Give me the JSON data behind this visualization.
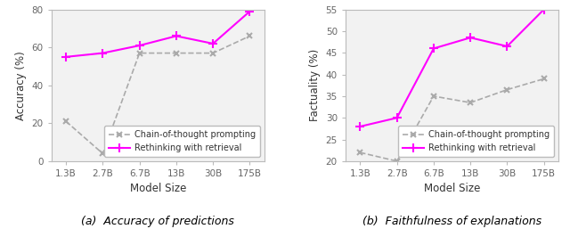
{
  "x_labels": [
    "1.3B",
    "2.7B",
    "6.7B",
    "13B",
    "30B",
    "175B"
  ],
  "x_positions": [
    0,
    1,
    2,
    3,
    4,
    5
  ],
  "accuracy_cot": [
    21,
    4,
    57,
    57,
    57,
    66
  ],
  "accuracy_rwr": [
    55,
    57,
    61,
    66,
    62,
    79
  ],
  "factuality_cot": [
    22,
    20,
    35,
    33.5,
    36.5,
    39
  ],
  "factuality_rwr": [
    28,
    30,
    46,
    48.5,
    46.5,
    55
  ],
  "accuracy_ylim": [
    0,
    80
  ],
  "accuracy_yticks": [
    0,
    20,
    40,
    60,
    80
  ],
  "factuality_ylim": [
    20,
    55
  ],
  "factuality_yticks": [
    20,
    25,
    30,
    35,
    40,
    45,
    50,
    55
  ],
  "ylabel_accuracy": "Accuracy (%)",
  "ylabel_factuality": "Factuality (%)",
  "xlabel": "Model Size",
  "caption_a": "(a)  Accuracy of predictions",
  "caption_b": "(b)  Faithfulness of explanations",
  "legend_cot": "Chain-of-thought prompting",
  "legend_rwr": "Rethinking with retrieval",
  "color_cot": "#aaaaaa",
  "color_rwr": "#ff00ff",
  "line_style_cot": "--",
  "line_style_rwr": "-",
  "marker_cot": "x",
  "marker_rwr": "+",
  "ax_facecolor": "#f2f2f2",
  "spine_color": "#bbbbbb",
  "tick_color": "#666666",
  "label_color": "#333333"
}
